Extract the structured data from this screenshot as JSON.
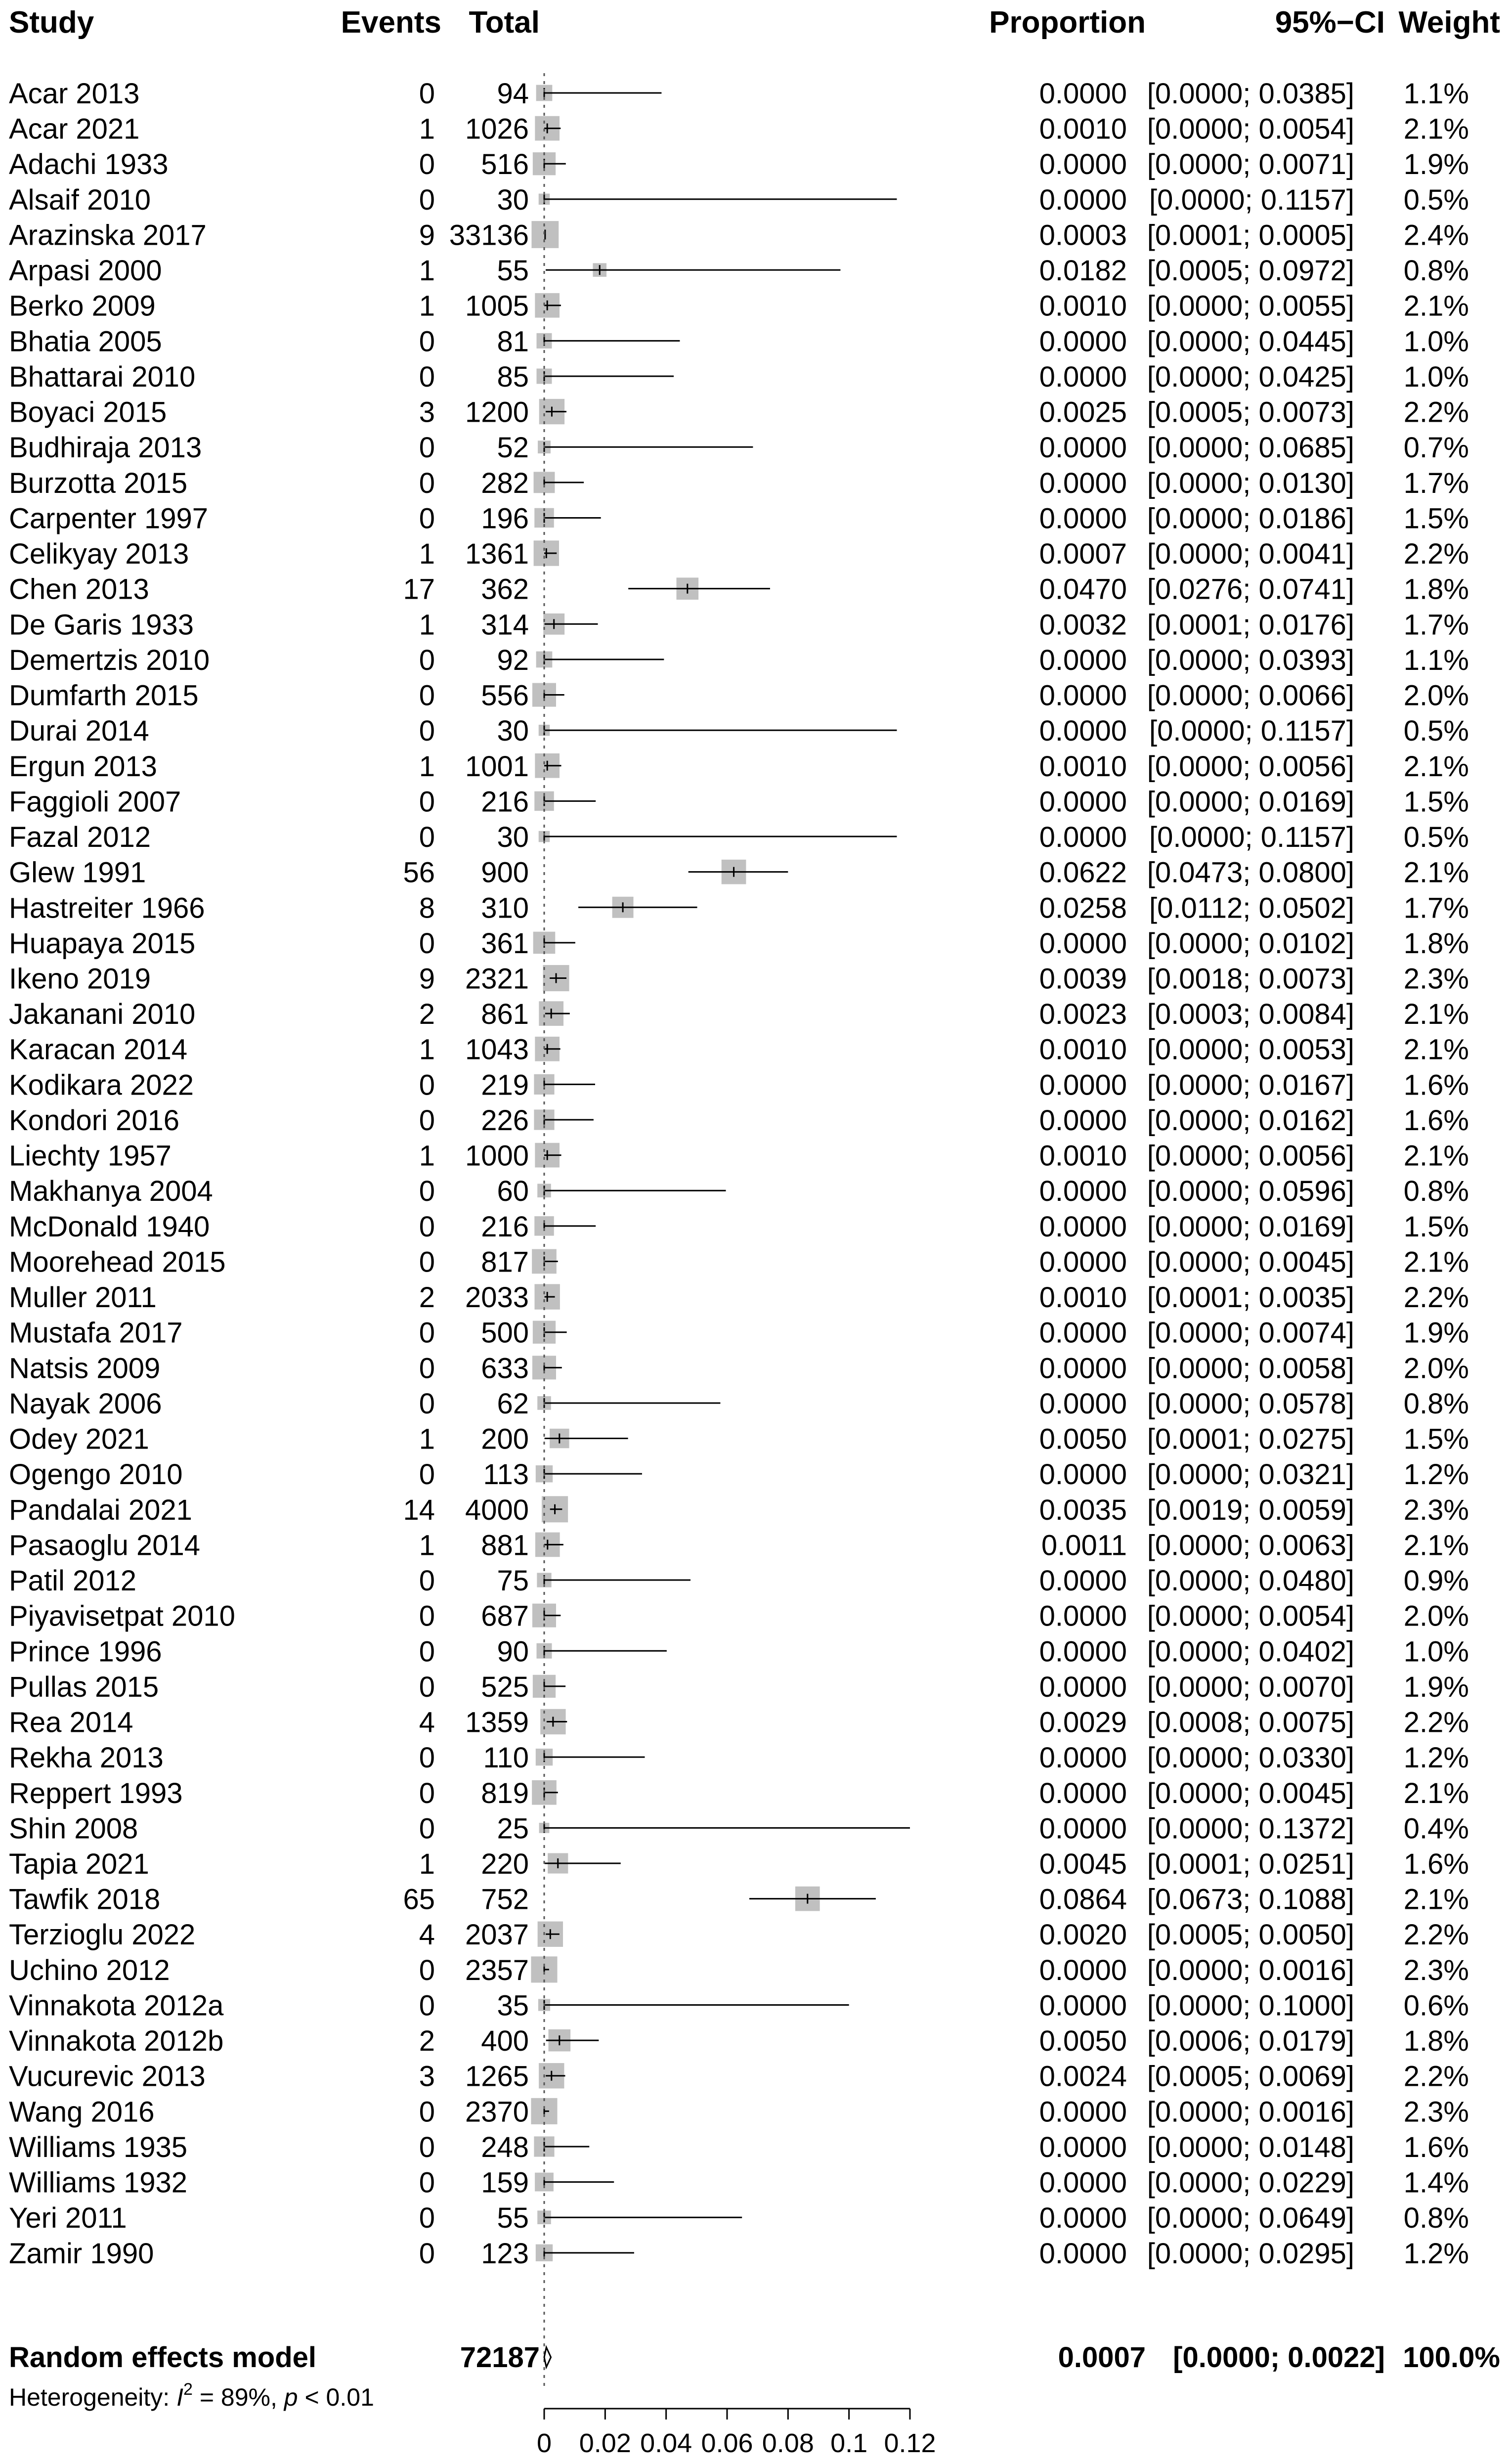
{
  "headers": {
    "study": "Study",
    "events": "Events",
    "total": "Total",
    "proportion": "Proportion",
    "ci": "95%−CI",
    "weight": "Weight"
  },
  "summary": {
    "label": "Random effects model",
    "total": "72187",
    "proportion": "0.0007",
    "ci": "[0.0000; 0.0022]",
    "weight": "100.0%",
    "estimate": 0.0007,
    "lower": 0.0,
    "upper": 0.0022
  },
  "heterogeneity": {
    "prefix": "Heterogeneity: ",
    "i2_symbol": "I",
    "i2_sup": "2",
    "i2_value": " = 89%, ",
    "p_symbol": "p",
    "p_value": " < 0.01"
  },
  "colors": {
    "square": "#c0c0c0",
    "text": "#000000",
    "reference_line": "#555555"
  },
  "chart_data": {
    "type": "forest",
    "xlim": [
      0,
      0.12
    ],
    "x_ticks": [
      {
        "value": 0,
        "label": "0"
      },
      {
        "value": 0.02,
        "label": "0.02"
      },
      {
        "value": 0.04,
        "label": "0.04"
      },
      {
        "value": 0.06,
        "label": "0.06"
      },
      {
        "value": 0.08,
        "label": "0.08"
      },
      {
        "value": 0.1,
        "label": "0.1"
      },
      {
        "value": 0.12,
        "label": "0.12"
      }
    ],
    "reference_value": 0,
    "studies": [
      {
        "study": "Acar 2013",
        "events": "0",
        "total": "94",
        "proportion": "0.0000",
        "ci": "[0.0000; 0.0385]",
        "weight": "1.1%",
        "est": 0.0,
        "lo": 0.0,
        "hi": 0.0385,
        "w": 1.1
      },
      {
        "study": "Acar 2021",
        "events": "1",
        "total": "1026",
        "proportion": "0.0010",
        "ci": "[0.0000; 0.0054]",
        "weight": "2.1%",
        "est": 0.001,
        "lo": 0.0,
        "hi": 0.0054,
        "w": 2.1
      },
      {
        "study": "Adachi 1933",
        "events": "0",
        "total": "516",
        "proportion": "0.0000",
        "ci": "[0.0000; 0.0071]",
        "weight": "1.9%",
        "est": 0.0,
        "lo": 0.0,
        "hi": 0.0071,
        "w": 1.9
      },
      {
        "study": "Alsaif 2010",
        "events": "0",
        "total": "30",
        "proportion": "0.0000",
        "ci": "[0.0000; 0.1157]",
        "weight": "0.5%",
        "est": 0.0,
        "lo": 0.0,
        "hi": 0.1157,
        "w": 0.5
      },
      {
        "study": "Arazinska 2017",
        "events": "9",
        "total": "33136",
        "proportion": "0.0003",
        "ci": "[0.0001; 0.0005]",
        "weight": "2.4%",
        "est": 0.0003,
        "lo": 0.0001,
        "hi": 0.0005,
        "w": 2.4
      },
      {
        "study": "Arpasi 2000",
        "events": "1",
        "total": "55",
        "proportion": "0.0182",
        "ci": "[0.0005; 0.0972]",
        "weight": "0.8%",
        "est": 0.0182,
        "lo": 0.0005,
        "hi": 0.0972,
        "w": 0.8
      },
      {
        "study": "Berko 2009",
        "events": "1",
        "total": "1005",
        "proportion": "0.0010",
        "ci": "[0.0000; 0.0055]",
        "weight": "2.1%",
        "est": 0.001,
        "lo": 0.0,
        "hi": 0.0055,
        "w": 2.1
      },
      {
        "study": "Bhatia 2005",
        "events": "0",
        "total": "81",
        "proportion": "0.0000",
        "ci": "[0.0000; 0.0445]",
        "weight": "1.0%",
        "est": 0.0,
        "lo": 0.0,
        "hi": 0.0445,
        "w": 1.0
      },
      {
        "study": "Bhattarai 2010",
        "events": "0",
        "total": "85",
        "proportion": "0.0000",
        "ci": "[0.0000; 0.0425]",
        "weight": "1.0%",
        "est": 0.0,
        "lo": 0.0,
        "hi": 0.0425,
        "w": 1.0
      },
      {
        "study": "Boyaci 2015",
        "events": "3",
        "total": "1200",
        "proportion": "0.0025",
        "ci": "[0.0005; 0.0073]",
        "weight": "2.2%",
        "est": 0.0025,
        "lo": 0.0005,
        "hi": 0.0073,
        "w": 2.2
      },
      {
        "study": "Budhiraja 2013",
        "events": "0",
        "total": "52",
        "proportion": "0.0000",
        "ci": "[0.0000; 0.0685]",
        "weight": "0.7%",
        "est": 0.0,
        "lo": 0.0,
        "hi": 0.0685,
        "w": 0.7
      },
      {
        "study": "Burzotta 2015",
        "events": "0",
        "total": "282",
        "proportion": "0.0000",
        "ci": "[0.0000; 0.0130]",
        "weight": "1.7%",
        "est": 0.0,
        "lo": 0.0,
        "hi": 0.013,
        "w": 1.7
      },
      {
        "study": "Carpenter 1997",
        "events": "0",
        "total": "196",
        "proportion": "0.0000",
        "ci": "[0.0000; 0.0186]",
        "weight": "1.5%",
        "est": 0.0,
        "lo": 0.0,
        "hi": 0.0186,
        "w": 1.5
      },
      {
        "study": "Celikyay 2013",
        "events": "1",
        "total": "1361",
        "proportion": "0.0007",
        "ci": "[0.0000; 0.0041]",
        "weight": "2.2%",
        "est": 0.0007,
        "lo": 0.0,
        "hi": 0.0041,
        "w": 2.2
      },
      {
        "study": "Chen 2013",
        "events": "17",
        "total": "362",
        "proportion": "0.0470",
        "ci": "[0.0276; 0.0741]",
        "weight": "1.8%",
        "est": 0.047,
        "lo": 0.0276,
        "hi": 0.0741,
        "w": 1.8
      },
      {
        "study": "De Garis 1933",
        "events": "1",
        "total": "314",
        "proportion": "0.0032",
        "ci": "[0.0001; 0.0176]",
        "weight": "1.7%",
        "est": 0.0032,
        "lo": 0.0001,
        "hi": 0.0176,
        "w": 1.7
      },
      {
        "study": "Demertzis 2010",
        "events": "0",
        "total": "92",
        "proportion": "0.0000",
        "ci": "[0.0000; 0.0393]",
        "weight": "1.1%",
        "est": 0.0,
        "lo": 0.0,
        "hi": 0.0393,
        "w": 1.1
      },
      {
        "study": "Dumfarth 2015",
        "events": "0",
        "total": "556",
        "proportion": "0.0000",
        "ci": "[0.0000; 0.0066]",
        "weight": "2.0%",
        "est": 0.0,
        "lo": 0.0,
        "hi": 0.0066,
        "w": 2.0
      },
      {
        "study": "Durai 2014",
        "events": "0",
        "total": "30",
        "proportion": "0.0000",
        "ci": "[0.0000; 0.1157]",
        "weight": "0.5%",
        "est": 0.0,
        "lo": 0.0,
        "hi": 0.1157,
        "w": 0.5
      },
      {
        "study": "Ergun 2013",
        "events": "1",
        "total": "1001",
        "proportion": "0.0010",
        "ci": "[0.0000; 0.0056]",
        "weight": "2.1%",
        "est": 0.001,
        "lo": 0.0,
        "hi": 0.0056,
        "w": 2.1
      },
      {
        "study": "Faggioli 2007",
        "events": "0",
        "total": "216",
        "proportion": "0.0000",
        "ci": "[0.0000; 0.0169]",
        "weight": "1.5%",
        "est": 0.0,
        "lo": 0.0,
        "hi": 0.0169,
        "w": 1.5
      },
      {
        "study": "Fazal 2012",
        "events": "0",
        "total": "30",
        "proportion": "0.0000",
        "ci": "[0.0000; 0.1157]",
        "weight": "0.5%",
        "est": 0.0,
        "lo": 0.0,
        "hi": 0.1157,
        "w": 0.5
      },
      {
        "study": "Glew 1991",
        "events": "56",
        "total": "900",
        "proportion": "0.0622",
        "ci": "[0.0473; 0.0800]",
        "weight": "2.1%",
        "est": 0.0622,
        "lo": 0.0473,
        "hi": 0.08,
        "w": 2.1
      },
      {
        "study": "Hastreiter 1966",
        "events": "8",
        "total": "310",
        "proportion": "0.0258",
        "ci": "[0.0112; 0.0502]",
        "weight": "1.7%",
        "est": 0.0258,
        "lo": 0.0112,
        "hi": 0.0502,
        "w": 1.7
      },
      {
        "study": "Huapaya 2015",
        "events": "0",
        "total": "361",
        "proportion": "0.0000",
        "ci": "[0.0000; 0.0102]",
        "weight": "1.8%",
        "est": 0.0,
        "lo": 0.0,
        "hi": 0.0102,
        "w": 1.8
      },
      {
        "study": "Ikeno 2019",
        "events": "9",
        "total": "2321",
        "proportion": "0.0039",
        "ci": "[0.0018; 0.0073]",
        "weight": "2.3%",
        "est": 0.0039,
        "lo": 0.0018,
        "hi": 0.0073,
        "w": 2.3
      },
      {
        "study": "Jakanani 2010",
        "events": "2",
        "total": "861",
        "proportion": "0.0023",
        "ci": "[0.0003; 0.0084]",
        "weight": "2.1%",
        "est": 0.0023,
        "lo": 0.0003,
        "hi": 0.0084,
        "w": 2.1
      },
      {
        "study": "Karacan 2014",
        "events": "1",
        "total": "1043",
        "proportion": "0.0010",
        "ci": "[0.0000; 0.0053]",
        "weight": "2.1%",
        "est": 0.001,
        "lo": 0.0,
        "hi": 0.0053,
        "w": 2.1
      },
      {
        "study": "Kodikara 2022",
        "events": "0",
        "total": "219",
        "proportion": "0.0000",
        "ci": "[0.0000; 0.0167]",
        "weight": "1.6%",
        "est": 0.0,
        "lo": 0.0,
        "hi": 0.0167,
        "w": 1.6
      },
      {
        "study": "Kondori 2016",
        "events": "0",
        "total": "226",
        "proportion": "0.0000",
        "ci": "[0.0000; 0.0162]",
        "weight": "1.6%",
        "est": 0.0,
        "lo": 0.0,
        "hi": 0.0162,
        "w": 1.6
      },
      {
        "study": "Liechty 1957",
        "events": "1",
        "total": "1000",
        "proportion": "0.0010",
        "ci": "[0.0000; 0.0056]",
        "weight": "2.1%",
        "est": 0.001,
        "lo": 0.0,
        "hi": 0.0056,
        "w": 2.1
      },
      {
        "study": "Makhanya 2004",
        "events": "0",
        "total": "60",
        "proportion": "0.0000",
        "ci": "[0.0000; 0.0596]",
        "weight": "0.8%",
        "est": 0.0,
        "lo": 0.0,
        "hi": 0.0596,
        "w": 0.8
      },
      {
        "study": "McDonald 1940",
        "events": "0",
        "total": "216",
        "proportion": "0.0000",
        "ci": "[0.0000; 0.0169]",
        "weight": "1.5%",
        "est": 0.0,
        "lo": 0.0,
        "hi": 0.0169,
        "w": 1.5
      },
      {
        "study": "Moorehead 2015",
        "events": "0",
        "total": "817",
        "proportion": "0.0000",
        "ci": "[0.0000; 0.0045]",
        "weight": "2.1%",
        "est": 0.0,
        "lo": 0.0,
        "hi": 0.0045,
        "w": 2.1
      },
      {
        "study": "Muller 2011",
        "events": "2",
        "total": "2033",
        "proportion": "0.0010",
        "ci": "[0.0001; 0.0035]",
        "weight": "2.2%",
        "est": 0.001,
        "lo": 0.0001,
        "hi": 0.0035,
        "w": 2.2
      },
      {
        "study": "Mustafa 2017",
        "events": "0",
        "total": "500",
        "proportion": "0.0000",
        "ci": "[0.0000; 0.0074]",
        "weight": "1.9%",
        "est": 0.0,
        "lo": 0.0,
        "hi": 0.0074,
        "w": 1.9
      },
      {
        "study": "Natsis 2009",
        "events": "0",
        "total": "633",
        "proportion": "0.0000",
        "ci": "[0.0000; 0.0058]",
        "weight": "2.0%",
        "est": 0.0,
        "lo": 0.0,
        "hi": 0.0058,
        "w": 2.0
      },
      {
        "study": "Nayak 2006",
        "events": "0",
        "total": "62",
        "proportion": "0.0000",
        "ci": "[0.0000; 0.0578]",
        "weight": "0.8%",
        "est": 0.0,
        "lo": 0.0,
        "hi": 0.0578,
        "w": 0.8
      },
      {
        "study": "Odey 2021",
        "events": "1",
        "total": "200",
        "proportion": "0.0050",
        "ci": "[0.0001; 0.0275]",
        "weight": "1.5%",
        "est": 0.005,
        "lo": 0.0001,
        "hi": 0.0275,
        "w": 1.5
      },
      {
        "study": "Ogengo 2010",
        "events": "0",
        "total": "113",
        "proportion": "0.0000",
        "ci": "[0.0000; 0.0321]",
        "weight": "1.2%",
        "est": 0.0,
        "lo": 0.0,
        "hi": 0.0321,
        "w": 1.2
      },
      {
        "study": "Pandalai 2021",
        "events": "14",
        "total": "4000",
        "proportion": "0.0035",
        "ci": "[0.0019; 0.0059]",
        "weight": "2.3%",
        "est": 0.0035,
        "lo": 0.0019,
        "hi": 0.0059,
        "w": 2.3
      },
      {
        "study": "Pasaoglu 2014",
        "events": "1",
        "total": "881",
        "proportion": "0.0011",
        "ci": "[0.0000; 0.0063]",
        "weight": "2.1%",
        "est": 0.0011,
        "lo": 0.0,
        "hi": 0.0063,
        "w": 2.1
      },
      {
        "study": "Patil 2012",
        "events": "0",
        "total": "75",
        "proportion": "0.0000",
        "ci": "[0.0000; 0.0480]",
        "weight": "0.9%",
        "est": 0.0,
        "lo": 0.0,
        "hi": 0.048,
        "w": 0.9
      },
      {
        "study": "Piyavisetpat 2010",
        "events": "0",
        "total": "687",
        "proportion": "0.0000",
        "ci": "[0.0000; 0.0054]",
        "weight": "2.0%",
        "est": 0.0,
        "lo": 0.0,
        "hi": 0.0054,
        "w": 2.0
      },
      {
        "study": "Prince 1996",
        "events": "0",
        "total": "90",
        "proportion": "0.0000",
        "ci": "[0.0000; 0.0402]",
        "weight": "1.0%",
        "est": 0.0,
        "lo": 0.0,
        "hi": 0.0402,
        "w": 1.0
      },
      {
        "study": "Pullas 2015",
        "events": "0",
        "total": "525",
        "proportion": "0.0000",
        "ci": "[0.0000; 0.0070]",
        "weight": "1.9%",
        "est": 0.0,
        "lo": 0.0,
        "hi": 0.007,
        "w": 1.9
      },
      {
        "study": "Rea 2014",
        "events": "4",
        "total": "1359",
        "proportion": "0.0029",
        "ci": "[0.0008; 0.0075]",
        "weight": "2.2%",
        "est": 0.0029,
        "lo": 0.0008,
        "hi": 0.0075,
        "w": 2.2
      },
      {
        "study": "Rekha 2013",
        "events": "0",
        "total": "110",
        "proportion": "0.0000",
        "ci": "[0.0000; 0.0330]",
        "weight": "1.2%",
        "est": 0.0,
        "lo": 0.0,
        "hi": 0.033,
        "w": 1.2
      },
      {
        "study": "Reppert 1993",
        "events": "0",
        "total": "819",
        "proportion": "0.0000",
        "ci": "[0.0000; 0.0045]",
        "weight": "2.1%",
        "est": 0.0,
        "lo": 0.0,
        "hi": 0.0045,
        "w": 2.1
      },
      {
        "study": "Shin 2008",
        "events": "0",
        "total": "25",
        "proportion": "0.0000",
        "ci": "[0.0000; 0.1372]",
        "weight": "0.4%",
        "est": 0.0,
        "lo": 0.0,
        "hi": 0.1372,
        "w": 0.4
      },
      {
        "study": "Tapia 2021",
        "events": "1",
        "total": "220",
        "proportion": "0.0045",
        "ci": "[0.0001; 0.0251]",
        "weight": "1.6%",
        "est": 0.0045,
        "lo": 0.0001,
        "hi": 0.0251,
        "w": 1.6
      },
      {
        "study": "Tawfik 2018",
        "events": "65",
        "total": "752",
        "proportion": "0.0864",
        "ci": "[0.0673; 0.1088]",
        "weight": "2.1%",
        "est": 0.0864,
        "lo": 0.0673,
        "hi": 0.1088,
        "w": 2.1
      },
      {
        "study": "Terzioglu 2022",
        "events": "4",
        "total": "2037",
        "proportion": "0.0020",
        "ci": "[0.0005; 0.0050]",
        "weight": "2.2%",
        "est": 0.002,
        "lo": 0.0005,
        "hi": 0.005,
        "w": 2.2
      },
      {
        "study": "Uchino 2012",
        "events": "0",
        "total": "2357",
        "proportion": "0.0000",
        "ci": "[0.0000; 0.0016]",
        "weight": "2.3%",
        "est": 0.0,
        "lo": 0.0,
        "hi": 0.0016,
        "w": 2.3
      },
      {
        "study": "Vinnakota 2012a",
        "events": "0",
        "total": "35",
        "proportion": "0.0000",
        "ci": "[0.0000; 0.1000]",
        "weight": "0.6%",
        "est": 0.0,
        "lo": 0.0,
        "hi": 0.1,
        "w": 0.6
      },
      {
        "study": "Vinnakota 2012b",
        "events": "2",
        "total": "400",
        "proportion": "0.0050",
        "ci": "[0.0006; 0.0179]",
        "weight": "1.8%",
        "est": 0.005,
        "lo": 0.0006,
        "hi": 0.0179,
        "w": 1.8
      },
      {
        "study": "Vucurevic 2013",
        "events": "3",
        "total": "1265",
        "proportion": "0.0024",
        "ci": "[0.0005; 0.0069]",
        "weight": "2.2%",
        "est": 0.0024,
        "lo": 0.0005,
        "hi": 0.0069,
        "w": 2.2
      },
      {
        "study": "Wang 2016",
        "events": "0",
        "total": "2370",
        "proportion": "0.0000",
        "ci": "[0.0000; 0.0016]",
        "weight": "2.3%",
        "est": 0.0,
        "lo": 0.0,
        "hi": 0.0016,
        "w": 2.3
      },
      {
        "study": "Williams 1935",
        "events": "0",
        "total": "248",
        "proportion": "0.0000",
        "ci": "[0.0000; 0.0148]",
        "weight": "1.6%",
        "est": 0.0,
        "lo": 0.0,
        "hi": 0.0148,
        "w": 1.6
      },
      {
        "study": "Williams 1932",
        "events": "0",
        "total": "159",
        "proportion": "0.0000",
        "ci": "[0.0000; 0.0229]",
        "weight": "1.4%",
        "est": 0.0,
        "lo": 0.0,
        "hi": 0.0229,
        "w": 1.4
      },
      {
        "study": "Yeri 2011",
        "events": "0",
        "total": "55",
        "proportion": "0.0000",
        "ci": "[0.0000; 0.0649]",
        "weight": "0.8%",
        "est": 0.0,
        "lo": 0.0,
        "hi": 0.0649,
        "w": 0.8
      },
      {
        "study": "Zamir 1990",
        "events": "0",
        "total": "123",
        "proportion": "0.0000",
        "ci": "[0.0000; 0.0295]",
        "weight": "1.2%",
        "est": 0.0,
        "lo": 0.0,
        "hi": 0.0295,
        "w": 1.2
      }
    ]
  }
}
